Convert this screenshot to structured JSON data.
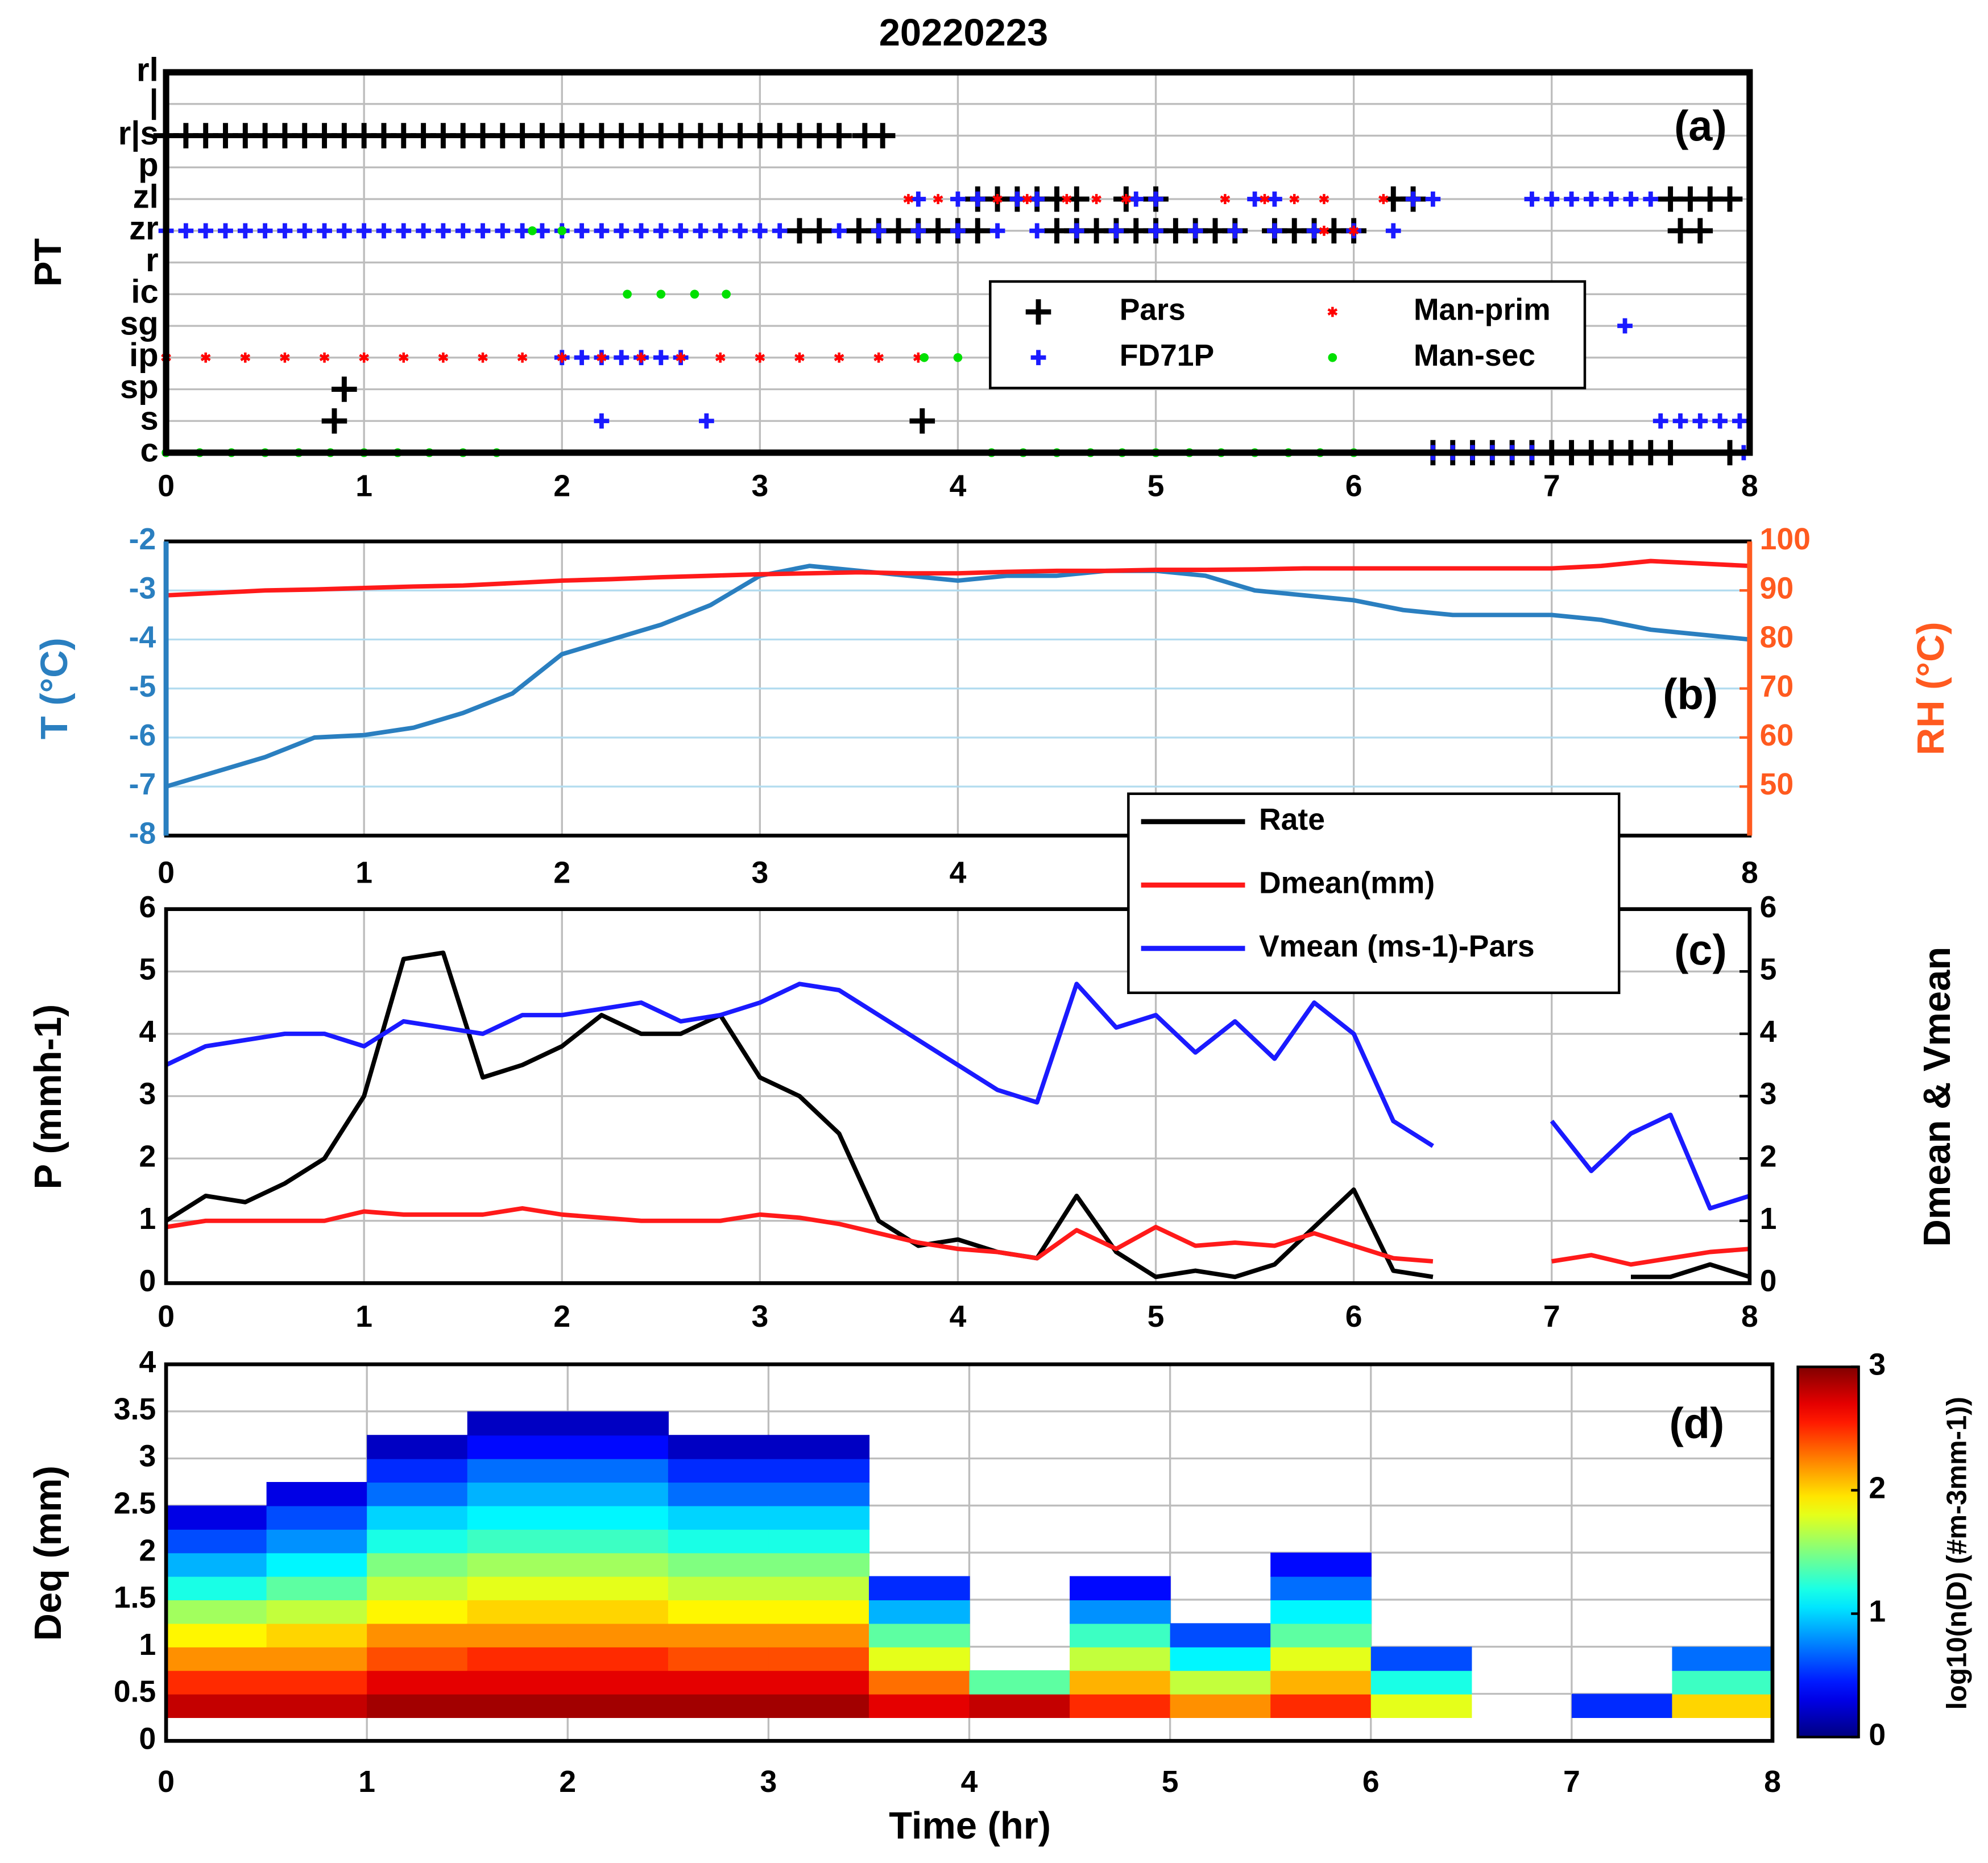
{
  "title": "20220223",
  "chart_data": [
    {
      "type": "scatter",
      "label": "(a)",
      "ylabel": "PT",
      "categories": [
        "c",
        "s",
        "sp",
        "ip",
        "sg",
        "ic",
        "r",
        "zr",
        "zl",
        "p",
        "r|s",
        "|",
        "rl"
      ],
      "xlim": [
        0,
        8
      ],
      "xticks": [
        0,
        1,
        2,
        3,
        4,
        5,
        6,
        7,
        8
      ],
      "grid": true,
      "legend": "center right",
      "series": [
        {
          "name": "Pars",
          "color": "#000000",
          "marker": "+",
          "groups": [
            {
              "y": "r|s",
              "x": [
                0,
                0.1,
                0.2,
                0.3,
                0.4,
                0.5,
                0.6,
                0.7,
                0.8,
                0.9,
                1,
                1.1,
                1.2,
                1.3,
                1.4,
                1.5,
                1.6,
                1.7,
                1.8,
                1.9,
                2,
                2.1,
                2.2,
                2.3,
                2.4,
                2.5,
                2.6,
                2.7,
                2.8,
                2.9,
                3,
                3.1,
                3.2,
                3.3,
                3.4,
                3.53,
                3.62
              ]
            },
            {
              "y": "zl",
              "x": [
                4.1,
                4.2,
                4.3,
                4.4,
                4.5,
                4.6,
                4.85,
                5.0,
                6.2,
                6.3,
                7.6,
                7.7,
                7.8,
                7.9
              ]
            },
            {
              "y": "zr",
              "x": [
                3.2,
                3.3,
                3.5,
                3.6,
                3.7,
                3.8,
                3.9,
                4.0,
                4.1,
                4.5,
                4.6,
                4.7,
                4.8,
                4.9,
                5.0,
                5.1,
                5.2,
                5.3,
                5.4,
                5.6,
                5.7,
                5.8,
                5.9,
                6.0,
                7.65,
                7.75
              ]
            },
            {
              "y": "sp",
              "x": [
                0.9
              ]
            },
            {
              "y": "s",
              "x": [
                0.85,
                3.82
              ]
            },
            {
              "y": "c",
              "x": [
                6.4,
                6.5,
                6.6,
                6.7,
                6.8,
                6.9,
                7.0,
                7.1,
                7.2,
                7.3,
                7.4,
                7.5,
                7.6,
                7.9
              ]
            }
          ]
        },
        {
          "name": "FD71P",
          "color": "#1a1aff",
          "marker": "+",
          "groups": [
            {
              "y": "zr",
              "x": [
                0,
                0.1,
                0.2,
                0.3,
                0.4,
                0.5,
                0.6,
                0.7,
                0.8,
                0.9,
                1,
                1.1,
                1.2,
                1.3,
                1.4,
                1.5,
                1.6,
                1.7,
                1.8,
                1.9,
                2,
                2.1,
                2.2,
                2.3,
                2.4,
                2.5,
                2.6,
                2.7,
                2.8,
                2.9,
                3,
                3.1,
                3.4,
                3.6,
                3.8,
                4,
                4.2,
                4.4,
                4.6,
                4.8,
                5,
                5.2,
                5.4,
                5.6,
                5.8,
                6,
                6.2
              ]
            },
            {
              "y": "zl",
              "x": [
                3.8,
                4.0,
                4.1,
                4.3,
                4.4,
                4.9,
                5.0,
                5.5,
                5.6,
                6.3,
                6.4,
                6.9,
                7.0,
                7.1,
                7.2,
                7.3,
                7.4,
                7.5
              ]
            },
            {
              "y": "ip",
              "x": [
                2.0,
                2.1,
                2.2,
                2.3,
                2.4,
                2.5,
                2.6
              ]
            },
            {
              "y": "sg",
              "x": [
                7.37
              ]
            },
            {
              "y": "s",
              "x": [
                2.2,
                2.73,
                7.55,
                7.65,
                7.75,
                7.85,
                7.95
              ]
            },
            {
              "y": "c",
              "x": [
                6.4,
                6.5,
                6.6,
                6.7,
                6.8,
                6.9,
                7.97
              ]
            }
          ]
        },
        {
          "name": "Man-prim",
          "color": "#ff0000",
          "marker": "*",
          "groups": [
            {
              "y": "ip",
              "x": [
                0,
                0.2,
                0.4,
                0.6,
                0.8,
                1,
                1.2,
                1.4,
                1.6,
                1.8,
                2,
                2.2,
                2.4,
                2.6,
                2.8,
                3,
                3.2,
                3.4,
                3.6,
                3.8
              ]
            },
            {
              "y": "zl",
              "x": [
                3.75,
                3.9,
                4.2,
                4.35,
                4.55,
                4.7,
                4.85,
                5.35,
                5.55,
                5.7,
                5.85,
                6.15
              ]
            },
            {
              "y": "zr",
              "x": [
                5.85,
                6.0
              ]
            }
          ]
        },
        {
          "name": "Man-sec",
          "color": "#00e000",
          "marker": ".",
          "groups": [
            {
              "y": "c",
              "x": [
                0,
                0.17,
                0.33,
                0.5,
                0.67,
                0.83,
                1.0,
                1.17,
                1.33,
                1.5,
                1.67,
                4.17,
                4.33,
                4.5,
                4.67,
                4.83,
                5.0,
                5.17,
                5.33,
                5.5,
                5.67,
                5.83,
                6.0
              ]
            },
            {
              "y": "zr",
              "x": [
                1.85,
                2.0
              ]
            },
            {
              "y": "ic",
              "x": [
                2.33,
                2.5,
                2.67,
                2.83
              ]
            },
            {
              "y": "ip",
              "x": [
                3.83,
                4.0
              ]
            }
          ]
        }
      ]
    },
    {
      "type": "line",
      "label": "(b)",
      "ylabel": "T (°C)",
      "y2label": "RH (°C)",
      "ycolor": "#2a7fc0",
      "y2color": "#ff5a1f",
      "xlim": [
        0,
        8
      ],
      "xticks": [
        0,
        1,
        2,
        3,
        4,
        5,
        6,
        7,
        8
      ],
      "ylim": [
        -8,
        -2
      ],
      "yticks": [
        -8,
        -7,
        -6,
        -5,
        -4,
        -3,
        -2
      ],
      "y2lim": [
        40,
        100
      ],
      "y2ticks": [
        50,
        60,
        70,
        80,
        90,
        100
      ],
      "grid": true,
      "x": [
        0,
        0.25,
        0.5,
        0.75,
        1,
        1.25,
        1.5,
        1.75,
        2,
        2.25,
        2.5,
        2.75,
        3,
        3.25,
        3.5,
        3.75,
        4,
        4.25,
        4.5,
        4.75,
        5,
        5.25,
        5.5,
        5.75,
        6,
        6.25,
        6.5,
        6.75,
        7,
        7.25,
        7.5,
        7.75,
        8
      ],
      "series": [
        {
          "color": "#2a7fc0",
          "values": [
            -7.0,
            -6.7,
            -6.4,
            -6.0,
            -5.95,
            -5.8,
            -5.5,
            -5.1,
            -4.3,
            -4.0,
            -3.7,
            -3.3,
            -2.7,
            -2.5,
            -2.6,
            -2.7,
            -2.8,
            -2.7,
            -2.7,
            -2.6,
            -2.6,
            -2.7,
            -3.0,
            -3.1,
            -3.2,
            -3.4,
            -3.5,
            -3.5,
            -3.5,
            -3.6,
            -3.8,
            -3.9,
            -4.0
          ]
        },
        {
          "color": "#ff1a1a",
          "axis": "y2",
          "values": [
            89,
            89.5,
            90,
            90.2,
            90.5,
            90.8,
            91,
            91.5,
            92,
            92.3,
            92.7,
            93,
            93.3,
            93.5,
            93.7,
            93.5,
            93.5,
            93.8,
            94,
            94,
            94.2,
            94.2,
            94.3,
            94.5,
            94.5,
            94.5,
            94.5,
            94.5,
            94.5,
            95,
            96,
            95.5,
            95
          ]
        }
      ]
    },
    {
      "type": "line",
      "label": "(c)",
      "ylabel": "P (mmh-1)",
      "y2label": "Dmean & Vmean",
      "xlim": [
        0,
        8
      ],
      "xticks": [
        0,
        1,
        2,
        3,
        4,
        5,
        6,
        7,
        8
      ],
      "ylim": [
        0,
        6
      ],
      "yticks": [
        0,
        1,
        2,
        3,
        4,
        5,
        6
      ],
      "y2lim": [
        0,
        6
      ],
      "y2ticks": [
        0,
        1,
        2,
        3,
        4,
        5,
        6
      ],
      "grid": true,
      "legend": "upper right",
      "x": [
        0,
        0.2,
        0.4,
        0.6,
        0.8,
        1,
        1.2,
        1.4,
        1.6,
        1.8,
        2,
        2.2,
        2.4,
        2.6,
        2.8,
        3,
        3.2,
        3.4,
        3.6,
        3.8,
        4,
        4.2,
        4.4,
        4.6,
        4.8,
        5,
        5.2,
        5.4,
        5.6,
        5.8,
        6,
        6.2,
        6.4,
        6.6,
        6.8,
        7,
        7.2,
        7.4,
        7.6,
        7.8,
        8
      ],
      "series": [
        {
          "name": "Rate",
          "color": "#000000",
          "values": [
            1.0,
            1.4,
            1.3,
            1.6,
            2.0,
            3.0,
            5.2,
            5.3,
            3.3,
            3.5,
            3.8,
            4.3,
            4.0,
            4.0,
            4.3,
            3.3,
            3.0,
            2.4,
            1.0,
            0.6,
            0.7,
            0.5,
            0.4,
            1.4,
            0.5,
            0.1,
            0.2,
            0.1,
            0.3,
            0.9,
            1.5,
            0.2,
            0.1,
            null,
            null,
            null,
            null,
            0.1,
            0.1,
            0.3,
            0.1
          ]
        },
        {
          "name": "Dmean(mm)",
          "color": "#ff1a1a",
          "axis": "y2",
          "values": [
            0.9,
            1.0,
            1.0,
            1.0,
            1.0,
            1.15,
            1.1,
            1.1,
            1.1,
            1.2,
            1.1,
            1.05,
            1.0,
            1.0,
            1.0,
            1.1,
            1.05,
            0.95,
            0.8,
            0.65,
            0.55,
            0.5,
            0.4,
            0.85,
            0.55,
            0.9,
            0.6,
            0.65,
            0.6,
            0.8,
            0.6,
            0.4,
            0.35,
            null,
            null,
            0.35,
            0.45,
            0.3,
            0.4,
            0.5,
            0.55
          ]
        },
        {
          "name": "Vmean (ms-1)-Pars",
          "color": "#1a1aff",
          "axis": "y2",
          "values": [
            3.5,
            3.8,
            3.9,
            4.0,
            4.0,
            3.8,
            4.2,
            4.1,
            4.0,
            4.3,
            4.3,
            4.4,
            4.5,
            4.2,
            4.3,
            4.5,
            4.8,
            4.7,
            4.3,
            3.9,
            3.5,
            3.1,
            2.9,
            4.8,
            4.1,
            4.3,
            3.7,
            4.2,
            3.6,
            4.5,
            4.0,
            2.6,
            2.2,
            null,
            null,
            2.6,
            1.8,
            2.4,
            2.7,
            1.2,
            1.4
          ]
        }
      ]
    },
    {
      "type": "heatmap",
      "label": "(d)",
      "ylabel": "Deq (mm)",
      "xlabel": "Time (hr)",
      "clabel": "log10(n(D) (#m-3mm-1))",
      "xlim": [
        0,
        8
      ],
      "xticks": [
        0,
        1,
        2,
        3,
        4,
        5,
        6,
        7,
        8
      ],
      "ylim": [
        0,
        4
      ],
      "yticks": [
        0,
        0.5,
        1,
        1.5,
        2,
        2.5,
        3,
        3.5,
        4
      ],
      "grid": true,
      "clim": [
        0,
        3
      ],
      "cticks": [
        0,
        1,
        2,
        3
      ],
      "colormap": "jet",
      "x_edges": [
        0,
        0.5,
        1,
        1.5,
        2,
        2.5,
        3,
        3.5,
        4,
        4.5,
        5,
        5.5,
        6,
        6.5,
        7,
        7.5,
        8
      ],
      "y_edges": [
        0.25,
        0.5,
        0.75,
        1,
        1.25,
        1.5,
        1.75,
        2,
        2.25,
        2.5,
        2.75,
        3,
        3.25,
        3.5,
        3.75
      ],
      "z": [
        [
          2.8,
          2.5,
          2.2,
          1.9,
          1.6,
          1.2,
          0.9,
          0.6,
          0.3,
          null,
          null,
          null,
          null,
          null
        ],
        [
          2.8,
          2.5,
          2.2,
          2.0,
          1.7,
          1.4,
          1.1,
          0.8,
          0.6,
          0.3,
          null,
          null,
          null,
          null
        ],
        [
          2.9,
          2.7,
          2.4,
          2.2,
          1.9,
          1.7,
          1.5,
          1.2,
          1.0,
          0.7,
          0.5,
          0.2,
          null,
          null
        ],
        [
          2.9,
          2.7,
          2.5,
          2.2,
          2.0,
          1.8,
          1.6,
          1.3,
          1.1,
          0.9,
          0.7,
          0.4,
          0.2,
          null
        ],
        [
          2.9,
          2.7,
          2.5,
          2.2,
          2.0,
          1.8,
          1.6,
          1.3,
          1.1,
          0.9,
          0.7,
          0.4,
          0.2,
          null
        ],
        [
          2.9,
          2.7,
          2.4,
          2.2,
          1.9,
          1.7,
          1.5,
          1.2,
          1.0,
          0.7,
          0.5,
          0.2,
          null,
          null
        ],
        [
          2.9,
          2.7,
          2.4,
          2.2,
          1.9,
          1.7,
          1.5,
          1.2,
          1.0,
          0.7,
          0.5,
          0.2,
          null,
          null
        ],
        [
          2.7,
          2.3,
          1.8,
          1.4,
          0.9,
          0.5,
          null,
          null,
          null,
          null,
          null,
          null,
          null,
          null
        ],
        [
          2.8,
          1.4,
          null,
          null,
          null,
          null,
          null,
          null,
          null,
          null,
          null,
          null,
          null,
          null
        ],
        [
          2.5,
          2.1,
          1.7,
          1.3,
          0.8,
          0.4,
          null,
          null,
          null,
          null,
          null,
          null,
          null,
          null
        ],
        [
          2.2,
          1.7,
          1.1,
          0.6,
          null,
          null,
          null,
          null,
          null,
          null,
          null,
          null,
          null,
          null
        ],
        [
          2.5,
          2.1,
          1.8,
          1.4,
          1.1,
          0.7,
          0.4,
          null,
          null,
          null,
          null,
          null,
          null,
          null
        ],
        [
          1.8,
          1.2,
          0.6,
          null,
          null,
          null,
          null,
          null,
          null,
          null,
          null,
          null,
          null,
          null
        ],
        [
          null,
          null,
          null,
          null,
          null,
          null,
          null,
          null,
          null,
          null,
          null,
          null,
          null,
          null
        ],
        [
          0.5,
          null,
          null,
          null,
          null,
          null,
          null,
          null,
          null,
          null,
          null,
          null,
          null,
          null
        ],
        [
          2.0,
          1.3,
          0.7,
          null,
          null,
          null,
          null,
          null,
          null,
          null,
          null,
          null,
          null,
          null
        ]
      ]
    }
  ]
}
